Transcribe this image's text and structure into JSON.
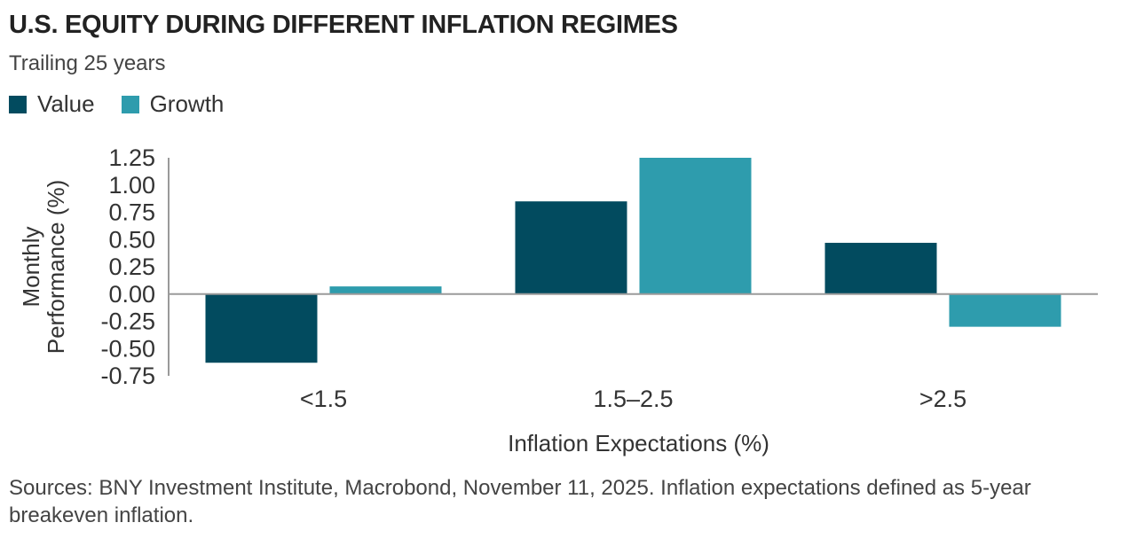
{
  "title": "U.S. EQUITY DURING DIFFERENT INFLATION REGIMES",
  "subtitle": "Trailing 25 years",
  "footnote": "Sources: BNY Investment Institute, Macrobond, November 11, 2025. Inflation expectations defined as 5-year breakeven inflation.",
  "chart_data": {
    "type": "bar",
    "categories": [
      "<1.5",
      "1.5–2.5",
      ">2.5"
    ],
    "series": [
      {
        "name": "Value",
        "values": [
          -0.63,
          0.85,
          0.47
        ],
        "color": "#024b5f"
      },
      {
        "name": "Growth",
        "values": [
          0.07,
          1.25,
          -0.3
        ],
        "color": "#2e9cad"
      }
    ],
    "xlabel": "Inflation Expectations (%)",
    "ylabel": [
      "Monthly",
      "Performance (%)"
    ],
    "ylim": [
      -0.75,
      1.25
    ],
    "yticks": [
      1.25,
      1.0,
      0.75,
      0.5,
      0.25,
      0.0,
      -0.25,
      -0.5,
      -0.75
    ],
    "ytick_labels": [
      "1.25",
      "1.00",
      "0.75",
      "0.50",
      "0.25",
      "0.00",
      "-0.25",
      "-0.50",
      "-0.75"
    ],
    "legend_position": "top-left",
    "grid": false
  }
}
